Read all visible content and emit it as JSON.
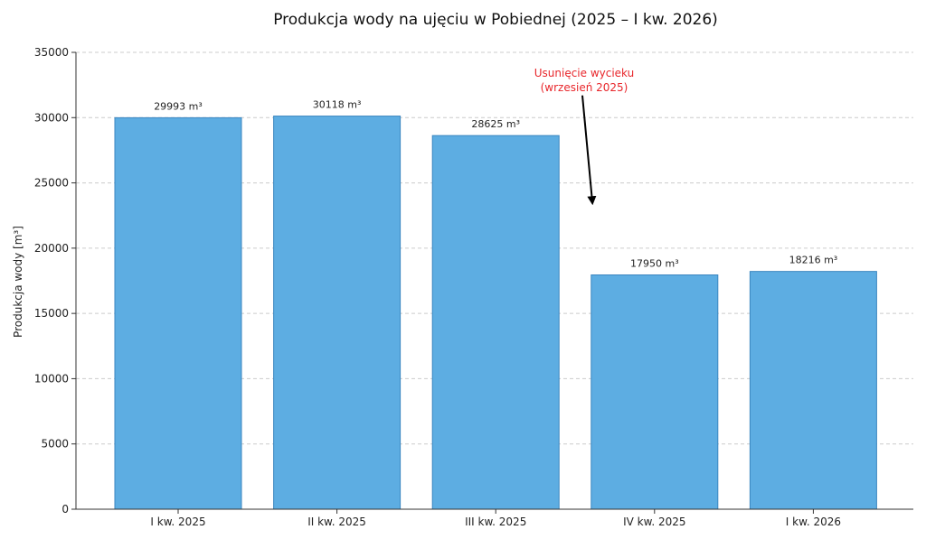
{
  "chart_data": {
    "type": "bar",
    "title": "Produkcja wody na ujęciu w Pobiednej (2025 – I kw. 2026)",
    "xlabel": "",
    "ylabel": "Produkcja wody [m³]",
    "categories": [
      "I kw. 2025",
      "II kw. 2025",
      "III kw. 2025",
      "IV kw. 2025",
      "I kw. 2026"
    ],
    "values": [
      29993,
      30118,
      28625,
      17950,
      18216
    ],
    "value_labels": [
      "29993 m³",
      "30118 m³",
      "28625 m³",
      "17950 m³",
      "18216 m³"
    ],
    "ylim": [
      0,
      35000
    ],
    "yticks": [
      0,
      5000,
      10000,
      15000,
      20000,
      25000,
      30000,
      35000
    ],
    "ytick_labels": [
      "0",
      "5000",
      "10000",
      "15000",
      "20000",
      "25000",
      "30000",
      "35000"
    ],
    "grid": true,
    "bar_color": "#5dade2",
    "bar_edge_color": "#3a86c0",
    "annotation": {
      "lines": [
        "Usunięcie wycieku",
        "(wrzesień 2025)"
      ],
      "color": "#e8262b",
      "arrow_from": {
        "category_index": 2.5,
        "value": 31700
      },
      "arrow_to": {
        "category_index": 2.62,
        "value": 23500
      }
    }
  }
}
